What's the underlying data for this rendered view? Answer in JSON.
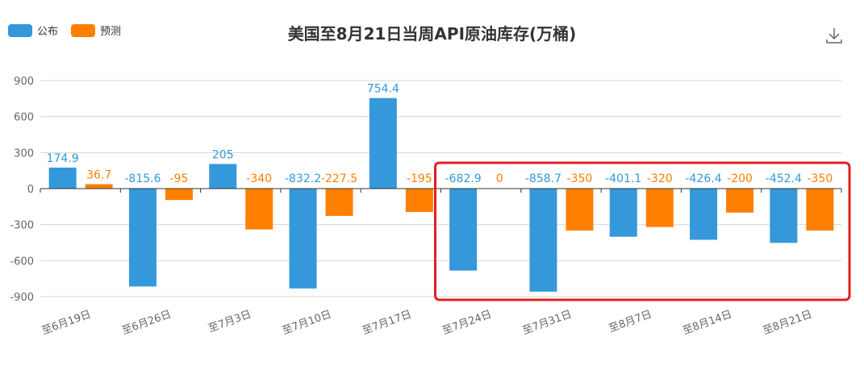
{
  "legend": [
    {
      "label": "公布",
      "color": "#3498db"
    },
    {
      "label": "预测",
      "color": "#ff7f00"
    }
  ],
  "icons": {
    "download": "download-icon"
  },
  "chart_data": {
    "type": "bar",
    "title": "美国至8月21日当周API原油库存(万桶)",
    "categories": [
      "至6月19日",
      "至6月26日",
      "至7月3日",
      "至7月10日",
      "至7月17日",
      "至7月24日",
      "至7月31日",
      "至8月7日",
      "至8月14日",
      "至8月21日"
    ],
    "series": [
      {
        "name": "公布",
        "color": "#3498db",
        "values": [
          174.9,
          -815.6,
          205,
          -832.2,
          754.4,
          -682.9,
          -858.7,
          -401.1,
          -426.4,
          -452.4
        ],
        "labels": [
          "174.9",
          "-815.6",
          "205",
          "-832.2",
          "754.4",
          "-682.9",
          "-858.7",
          "-401.1",
          "-426.4",
          "-452.4"
        ]
      },
      {
        "name": "预测",
        "color": "#ff7f00",
        "values": [
          36.7,
          -95,
          -340,
          -227.5,
          -195,
          0,
          -350,
          -320,
          -200,
          -350
        ],
        "labels": [
          "36.7",
          "-95",
          "-340",
          "-227.5",
          "-195",
          "0",
          "-350",
          "-320",
          "-200",
          "-350"
        ]
      }
    ],
    "ylim": [
      -900,
      900
    ],
    "yticks": [
      900,
      600,
      300,
      0,
      -300,
      -600,
      -900
    ],
    "grid": true,
    "legend_position": "top-left",
    "highlight": {
      "from_category": "至7月24日",
      "to_category": "至8月21日",
      "color": "#e02020"
    }
  }
}
